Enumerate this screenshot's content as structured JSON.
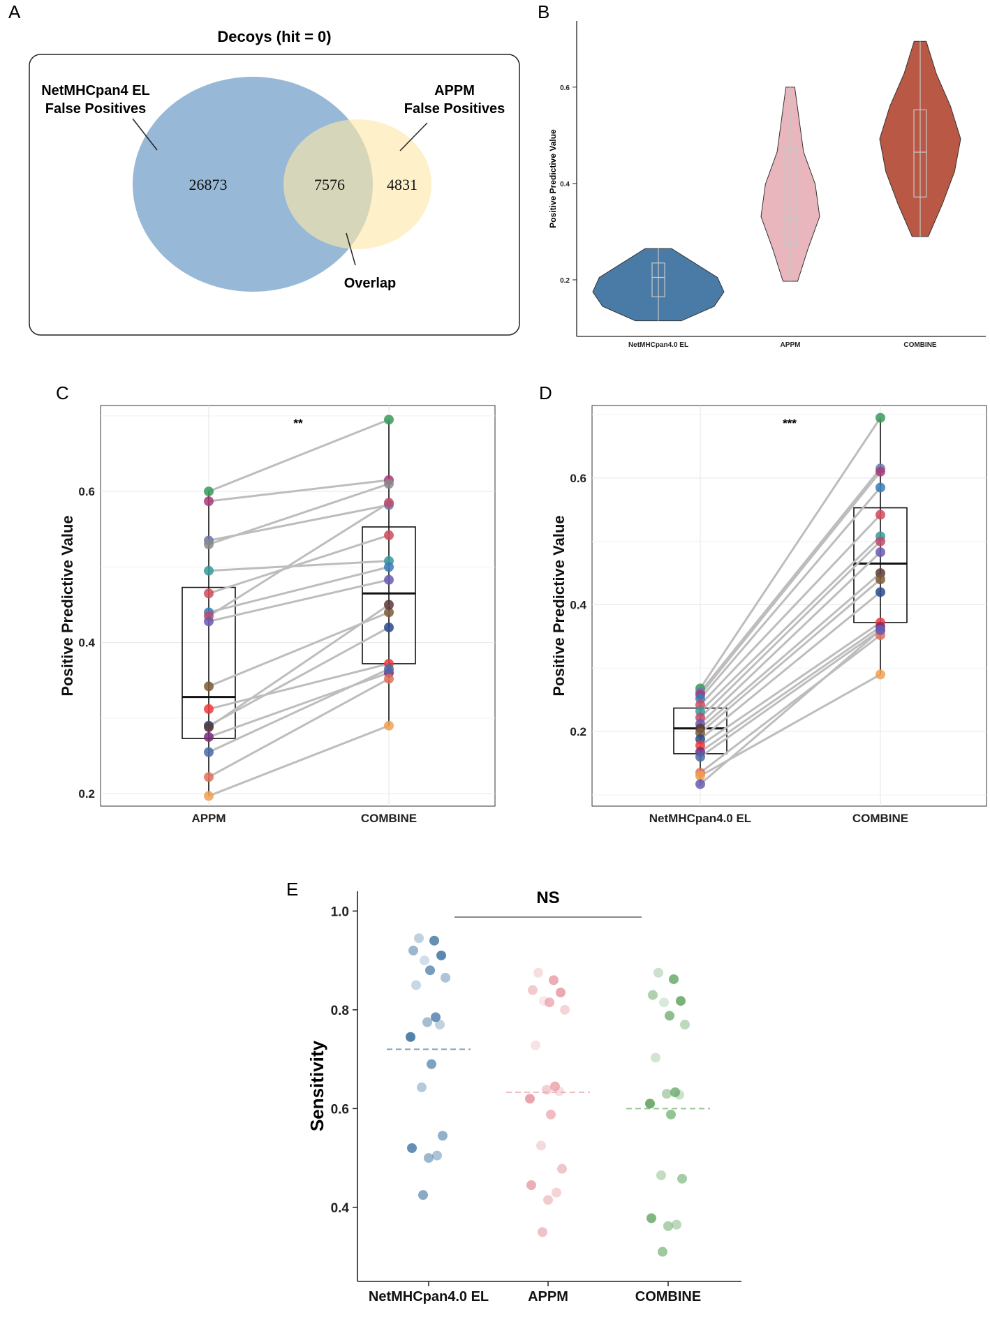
{
  "chart_data": [
    {
      "panel": "A",
      "type": "venn",
      "title": "Decoys (hit = 0)",
      "sets": [
        {
          "label_lines": [
            "NetMHCpan4 EL",
            "False Positives"
          ],
          "only": "26873",
          "color": "#6f9cc6"
        },
        {
          "label_lines": [
            "APPM",
            "False Positives"
          ],
          "only": "4831",
          "color": "#fde9a9"
        }
      ],
      "overlap": "7576",
      "overlap_label": "Overlap"
    },
    {
      "panel": "B",
      "type": "violin",
      "ylabel": "Positive  Predictive  Value",
      "ylim": [
        0.1,
        0.72
      ],
      "yticks": [
        "0.2",
        "0.4",
        "0.6"
      ],
      "categories": [
        "NetMHCpan4.0 EL",
        "APPM",
        "COMBINE"
      ],
      "colors": [
        "#4a7ba6",
        "#e8b6bc",
        "#b85845"
      ],
      "violins": [
        {
          "min": 0.115,
          "max": 0.265,
          "q1": 0.165,
          "median": 0.205,
          "q3": 0.235
        },
        {
          "min": 0.197,
          "max": 0.6,
          "q1": 0.273,
          "median": 0.328,
          "q3": 0.473
        },
        {
          "min": 0.29,
          "max": 0.695,
          "q1": 0.372,
          "median": 0.465,
          "q3": 0.553
        }
      ]
    },
    {
      "panel": "C",
      "type": "paired-box",
      "ylabel": "Positive  Predictive  Value",
      "ylim": [
        0.19,
        0.71
      ],
      "yticks": [
        "0.2",
        "0.4",
        "0.6"
      ],
      "categories": [
        "APPM",
        "COMBINE"
      ],
      "significance": "**",
      "boxes": [
        {
          "min": 0.197,
          "q1": 0.273,
          "median": 0.328,
          "q3": 0.473,
          "max": 0.6
        },
        {
          "min": 0.29,
          "q1": 0.372,
          "median": 0.465,
          "q3": 0.553,
          "max": 0.695
        }
      ],
      "pairs": [
        {
          "a": 0.6,
          "b": 0.695,
          "color": "#3a9a5c"
        },
        {
          "a": 0.587,
          "b": 0.615,
          "color": "#a83a78"
        },
        {
          "a": 0.535,
          "b": 0.582,
          "color": "#6a78a8"
        },
        {
          "a": 0.53,
          "b": 0.61,
          "color": "#8a8a8a"
        },
        {
          "a": 0.495,
          "b": 0.508,
          "color": "#3a9a9a"
        },
        {
          "a": 0.465,
          "b": 0.542,
          "color": "#d04a5a"
        },
        {
          "a": 0.44,
          "b": 0.5,
          "color": "#3a7ab8"
        },
        {
          "a": 0.435,
          "b": 0.585,
          "color": "#c04a6a"
        },
        {
          "a": 0.428,
          "b": 0.483,
          "color": "#6a5ab0"
        },
        {
          "a": 0.342,
          "b": 0.44,
          "color": "#7a5a3a"
        },
        {
          "a": 0.312,
          "b": 0.372,
          "color": "#f03a3a"
        },
        {
          "a": 0.29,
          "b": 0.42,
          "color": "#2a4a8a"
        },
        {
          "a": 0.288,
          "b": 0.45,
          "color": "#5a3a3a"
        },
        {
          "a": 0.275,
          "b": 0.36,
          "color": "#7a2a7a"
        },
        {
          "a": 0.255,
          "b": 0.365,
          "color": "#4a6aa8"
        },
        {
          "a": 0.222,
          "b": 0.352,
          "color": "#e0705a"
        },
        {
          "a": 0.197,
          "b": 0.29,
          "color": "#f0a050"
        }
      ]
    },
    {
      "panel": "D",
      "type": "paired-box",
      "ylabel": "Positive  Predictive  Value",
      "ylim": [
        0.09,
        0.71
      ],
      "yticks": [
        "0.2",
        "0.4",
        "0.6"
      ],
      "categories": [
        "NetMHCpan4.0 EL",
        "COMBINE"
      ],
      "significance": "***",
      "boxes": [
        {
          "min": 0.115,
          "q1": 0.165,
          "median": 0.205,
          "q3": 0.237,
          "max": 0.268
        },
        {
          "min": 0.29,
          "q1": 0.372,
          "median": 0.465,
          "q3": 0.553,
          "max": 0.695
        }
      ],
      "pairs": [
        {
          "a": 0.268,
          "b": 0.695,
          "color": "#3a9a5c"
        },
        {
          "a": 0.262,
          "b": 0.615,
          "color": "#6a78a8"
        },
        {
          "a": 0.258,
          "b": 0.61,
          "color": "#a83a78"
        },
        {
          "a": 0.252,
          "b": 0.585,
          "color": "#3a7ab8"
        },
        {
          "a": 0.242,
          "b": 0.542,
          "color": "#d04a5a"
        },
        {
          "a": 0.232,
          "b": 0.508,
          "color": "#3a9a9a"
        },
        {
          "a": 0.222,
          "b": 0.5,
          "color": "#c04a6a"
        },
        {
          "a": 0.212,
          "b": 0.483,
          "color": "#6a5ab0"
        },
        {
          "a": 0.205,
          "b": 0.45,
          "color": "#5a3a3a"
        },
        {
          "a": 0.198,
          "b": 0.44,
          "color": "#7a5a3a"
        },
        {
          "a": 0.188,
          "b": 0.42,
          "color": "#2a4a8a"
        },
        {
          "a": 0.178,
          "b": 0.372,
          "color": "#f03a3a"
        },
        {
          "a": 0.168,
          "b": 0.365,
          "color": "#7a2a7a"
        },
        {
          "a": 0.16,
          "b": 0.36,
          "color": "#4a6aa8"
        },
        {
          "a": 0.135,
          "b": 0.352,
          "color": "#e0705a"
        },
        {
          "a": 0.13,
          "b": 0.29,
          "color": "#f0a050"
        },
        {
          "a": 0.117,
          "b": 0.36,
          "color": "#6a5ab0"
        }
      ]
    },
    {
      "panel": "E",
      "type": "strip",
      "ylabel": "Sensitivity",
      "ylim": [
        0.25,
        1.04
      ],
      "yticks": [
        "0.4",
        "0.6",
        "0.8",
        "1.0"
      ],
      "categories": [
        "NetMHCpan4.0 EL",
        "APPM",
        "COMBINE"
      ],
      "colors": [
        "#4a7ba6",
        "#e8a0a8",
        "#6aaa6a"
      ],
      "significance": "NS",
      "means": [
        0.72,
        0.633,
        0.6
      ],
      "series": [
        {
          "name": "NetMHCpan4.0 EL",
          "values": [
            0.945,
            0.94,
            0.92,
            0.91,
            0.9,
            0.88,
            0.865,
            0.85,
            0.785,
            0.775,
            0.77,
            0.745,
            0.69,
            0.643,
            0.545,
            0.52,
            0.505,
            0.5,
            0.425
          ]
        },
        {
          "name": "APPM",
          "values": [
            0.875,
            0.86,
            0.84,
            0.835,
            0.818,
            0.815,
            0.8,
            0.728,
            0.645,
            0.638,
            0.635,
            0.62,
            0.588,
            0.525,
            0.478,
            0.445,
            0.43,
            0.415,
            0.35
          ]
        },
        {
          "name": "COMBINE",
          "values": [
            0.875,
            0.862,
            0.83,
            0.818,
            0.815,
            0.788,
            0.77,
            0.703,
            0.633,
            0.63,
            0.628,
            0.61,
            0.588,
            0.465,
            0.458,
            0.378,
            0.365,
            0.362,
            0.31
          ]
        }
      ]
    }
  ]
}
